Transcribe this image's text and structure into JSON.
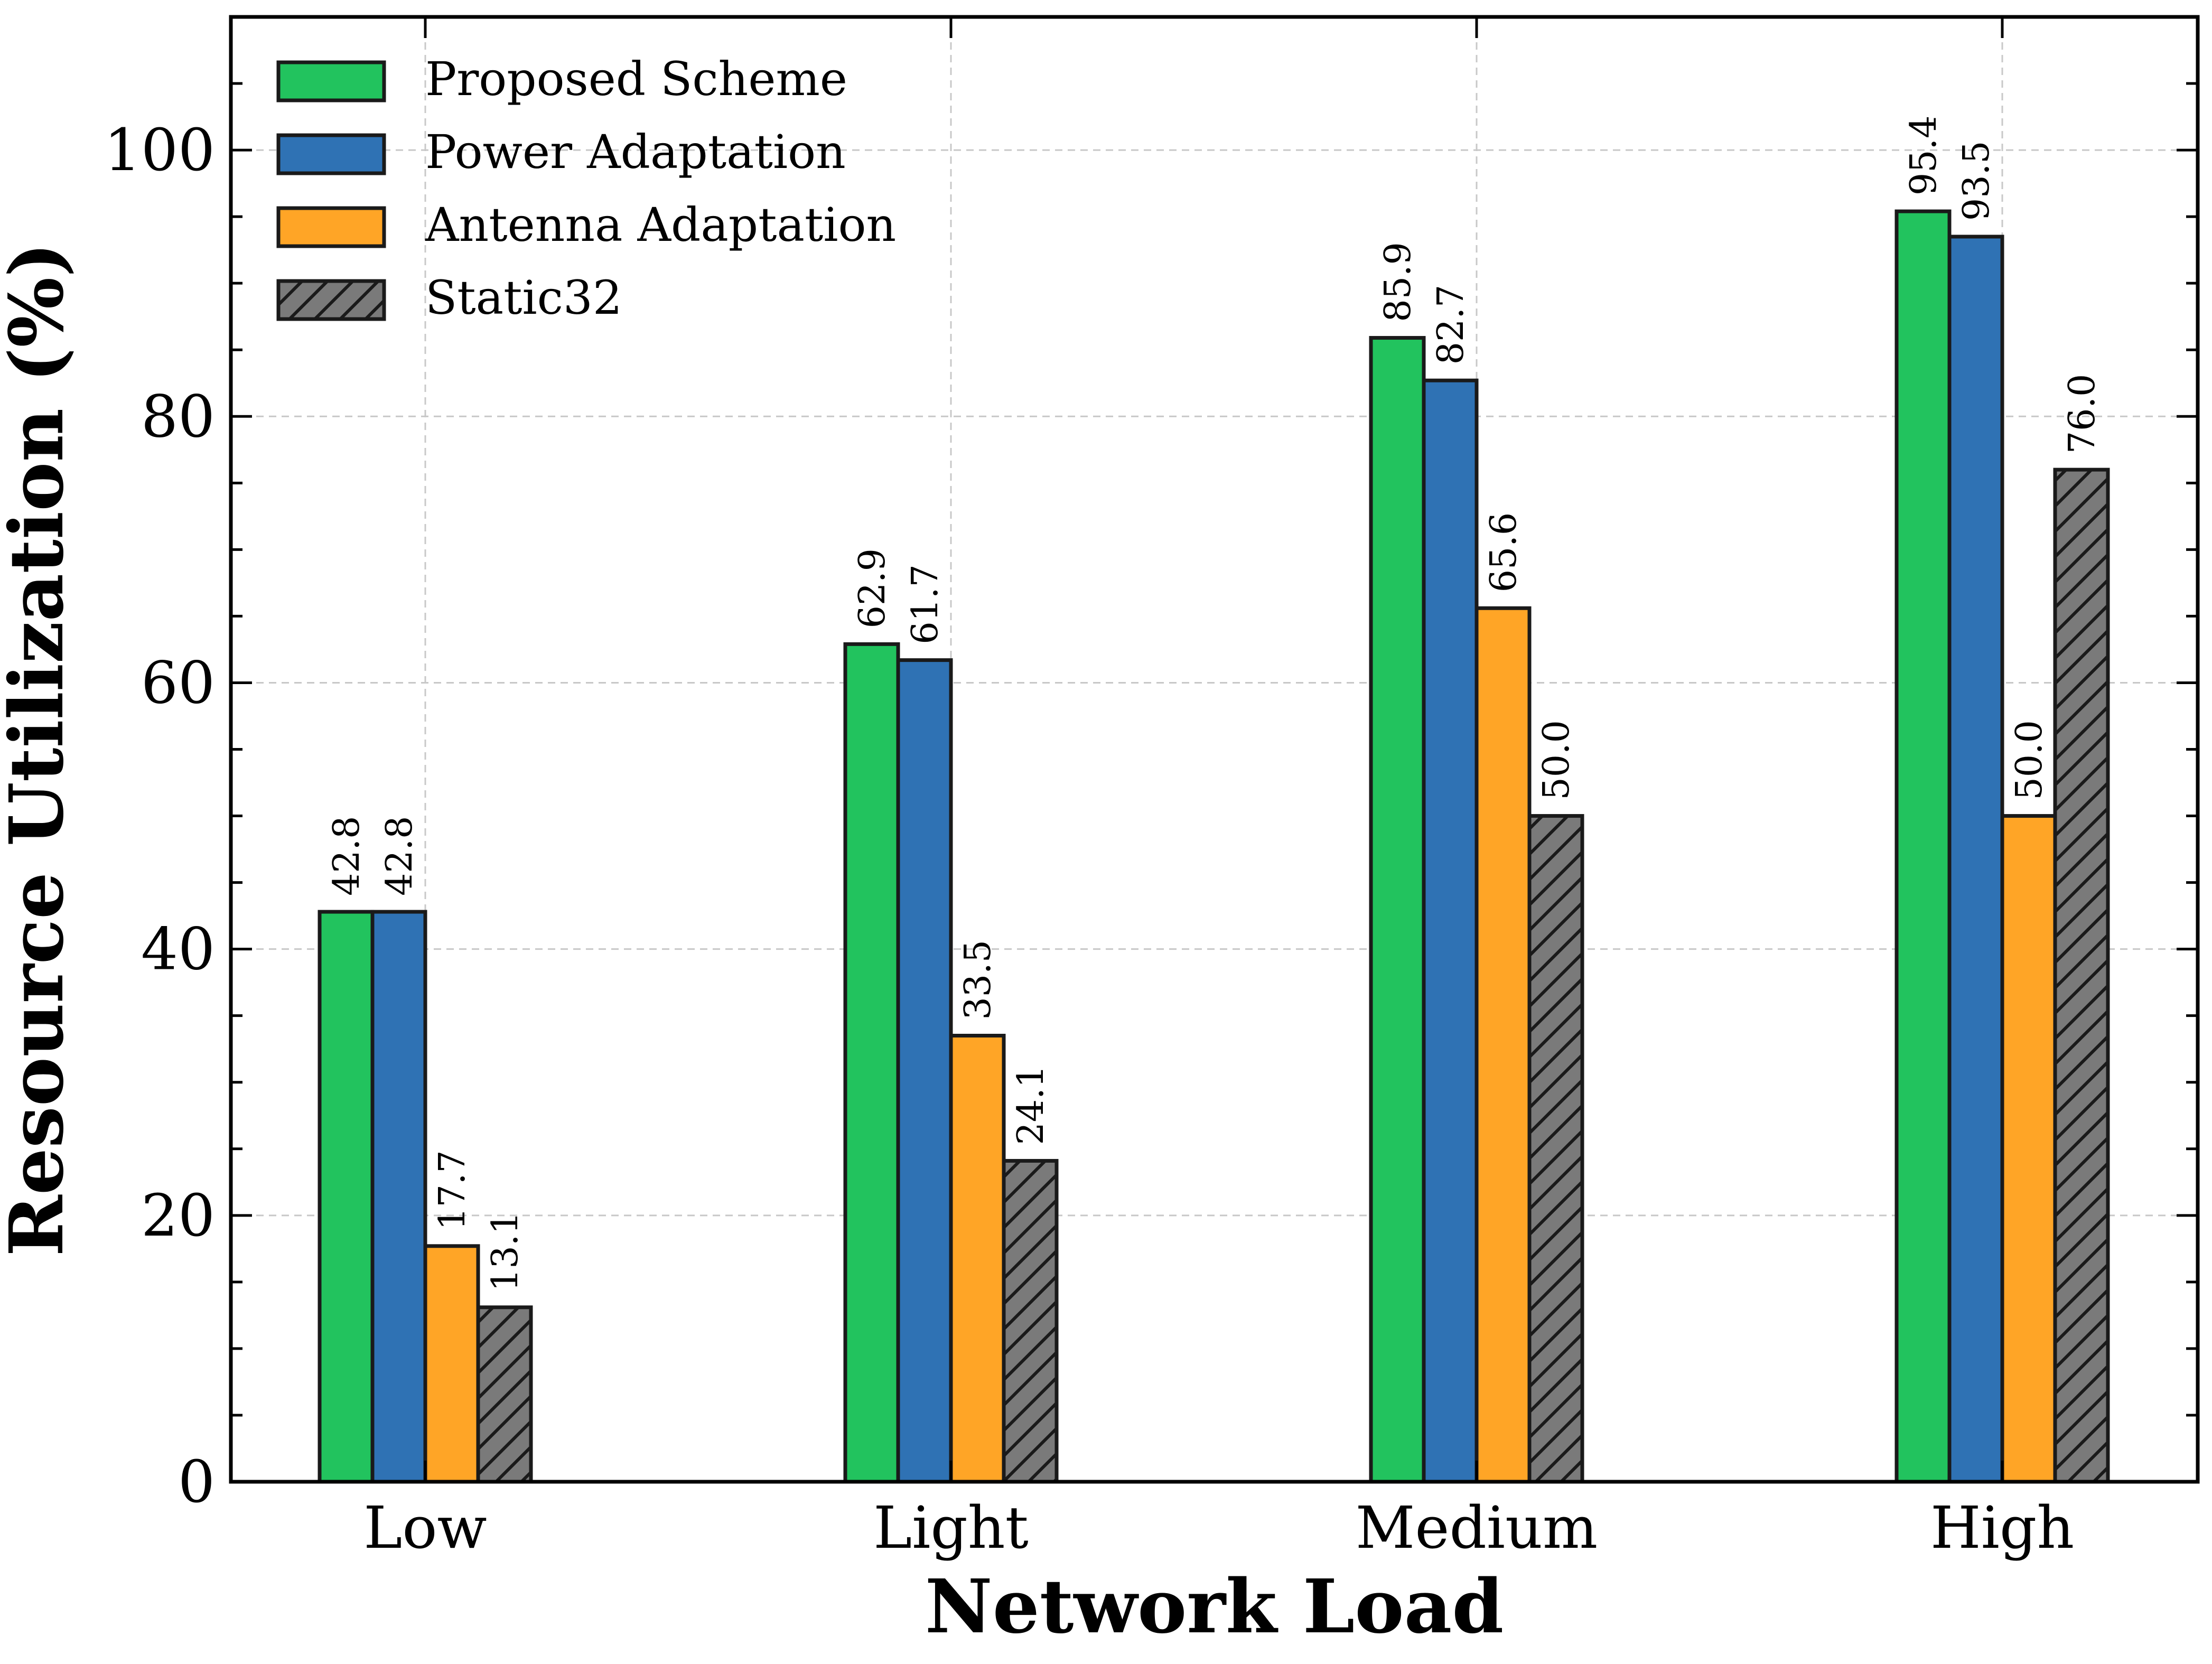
{
  "chart_data": {
    "type": "bar",
    "title": "",
    "xlabel": "Network Load",
    "ylabel": "Resource Utilization (%)",
    "ylim": [
      0,
      110
    ],
    "yticks": [
      0,
      20,
      40,
      60,
      80,
      100
    ],
    "grid": true,
    "legend_position": "top-left",
    "categories": [
      "Low",
      "Light",
      "Medium",
      "High"
    ],
    "series": [
      {
        "name": "Proposed Scheme",
        "color": "#22c35e",
        "hatch": false,
        "values": [
          42.8,
          62.9,
          85.9,
          95.4
        ],
        "labels": [
          "42.8",
          "62.9",
          "85.9",
          "95.4"
        ]
      },
      {
        "name": "Power Adaptation",
        "color": "#2f72b4",
        "hatch": false,
        "values": [
          42.8,
          61.7,
          82.7,
          93.5
        ],
        "labels": [
          "42.8",
          "61.7",
          "82.7",
          "93.5"
        ]
      },
      {
        "name": "Antenna Adaptation",
        "color": "#ffa526",
        "hatch": false,
        "values": [
          17.7,
          33.5,
          65.6,
          50.0
        ],
        "labels": [
          "17.7",
          "33.5",
          "65.6",
          "50.0"
        ]
      },
      {
        "name": "Static32",
        "color": "#6e6e6e",
        "hatch": true,
        "values": [
          13.1,
          24.1,
          50.0,
          76.0
        ],
        "labels": [
          "13.1",
          "24.1",
          "50.0",
          "76.0"
        ]
      }
    ]
  }
}
